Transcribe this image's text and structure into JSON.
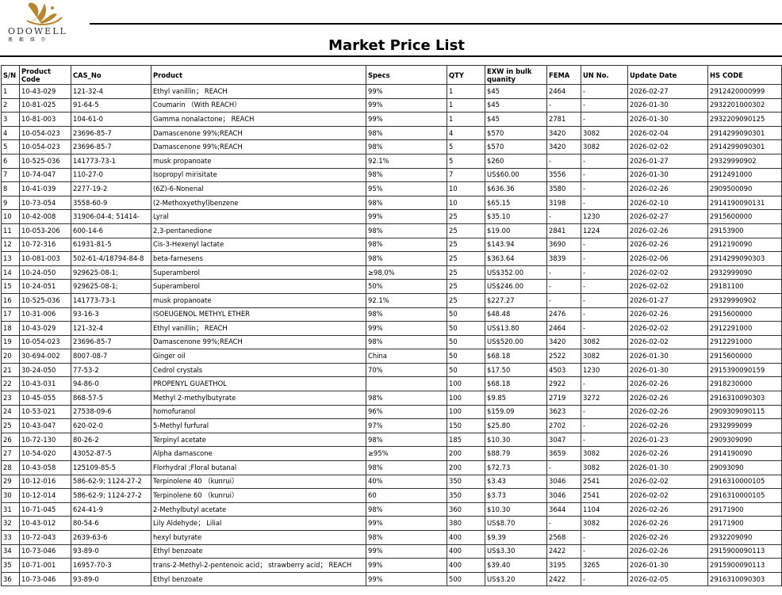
{
  "brand": {
    "name": "ODOWELL",
    "subtitle": "奥 都 维 尔",
    "logo_color": "#b8862e"
  },
  "title": "Market Price List",
  "columns": [
    "S/N",
    "Product Code",
    "CAS_No",
    "Product",
    "Specs",
    "QTY",
    "EXW in bulk quanity",
    "FEMA",
    "UN No.",
    "Update Date",
    "HS CODE"
  ],
  "rows": [
    [
      "1",
      "10-43-029",
      "121-32-4",
      "Ethyl vanillin； REACH",
      "99%",
      "1",
      "$45",
      "2464",
      "-",
      "2026-02-27",
      "2912420000999"
    ],
    [
      "2",
      "10-81-025",
      "91-64-5",
      "Coumarin （With REACH）",
      "99%",
      "1",
      "$45",
      "-",
      "-",
      "2026-01-30",
      "2932201000302"
    ],
    [
      "3",
      "10-81-003",
      "104-61-0",
      "Gamma nonalactone； REACH",
      "99%",
      "1",
      "$45",
      "2781",
      "-",
      "2026-01-30",
      "2932209090125"
    ],
    [
      "4",
      "10-054-023",
      "23696-85-7",
      "Damascenone 99%;REACH",
      "98%",
      "4",
      "$570",
      "3420",
      "3082",
      "2026-02-04",
      " 2914299090301"
    ],
    [
      "5",
      "10-054-023",
      "23696-85-7",
      "Damascenone 99%;REACH",
      "98%",
      "5",
      "$570",
      "3420",
      "3082",
      "2026-02-02",
      " 2914299090301"
    ],
    [
      "6",
      "10-525-036",
      "141773-73-1",
      "musk propanoate",
      "92.1%",
      "5",
      "$260",
      "-",
      "-",
      "2026-01-27",
      "29329990902"
    ],
    [
      "7",
      "10-74-047",
      "110-27-0",
      "Isopropyl mirisitate",
      "98%",
      "7",
      "US$60.00",
      "3556",
      "-",
      "2026-01-30",
      "2912491000"
    ],
    [
      "8",
      "10-41-039",
      "2277-19-2",
      "(6Z)-6-Nonenal",
      "95%",
      "10",
      "$636.36",
      "3580",
      "-",
      "2026-02-26",
      "2909500090"
    ],
    [
      "9",
      "10-73-054",
      "3558-60-9",
      "(2-Methoxyethyl)benzene",
      "98%",
      "10",
      "$65.15",
      "3198",
      "-",
      "2026-02-10",
      "2914190090131"
    ],
    [
      "10",
      "10-42-008",
      "31906-04-4; 51414-",
      "Lyral",
      "99%",
      "25",
      "$35.10",
      "-",
      "1230",
      "2026-02-27",
      "2915600000"
    ],
    [
      "11",
      "10-053-206",
      "600-14-6",
      "2,3-pentanedione",
      "98%",
      "25",
      "$19.00",
      "2841",
      "1224",
      "2026-02-26",
      "29153900"
    ],
    [
      "12",
      "10-72-316",
      "61931-81-5",
      "Cis-3-Hexenyl lactate",
      "98%",
      "25",
      "$143.94",
      "3690",
      "-",
      "2026-02-26",
      "2912190090"
    ],
    [
      "13",
      "10-081-003",
      "502-61-4/18794-84-8",
      "beta-farnesens",
      "98%",
      "25",
      "$363.64",
      "3839",
      "-",
      "2026-02-06",
      "2914299090303"
    ],
    [
      "14",
      "10-24-050",
      "929625-08-1;",
      "Superamberol",
      "≥98.0%",
      "25",
      "US$352.00",
      "-",
      "-",
      "2026-02-02",
      "2932999090"
    ],
    [
      "15",
      "10-24-051",
      "929625-08-1;",
      "Superamberol",
      "50%",
      "25",
      "US$246.00",
      "-",
      "-",
      "2026-02-02",
      "29181100"
    ],
    [
      "16",
      "10-525-036",
      "141773-73-1",
      "musk propanoate",
      "92.1%",
      "25",
      "$227.27",
      "-",
      "-",
      "2026-01-27",
      "29329990902"
    ],
    [
      "17",
      "10-31-006",
      "93-16-3",
      "ISOEUGENOL  METHYL  ETHER",
      "98%",
      "50",
      "$48.48",
      "2476",
      "-",
      "2026-02-26",
      "2915600000"
    ],
    [
      "18",
      "10-43-029",
      "121-32-4",
      "Ethyl vanillin； REACH",
      "99%",
      "50",
      "US$13.80",
      "2464",
      "-",
      "2026-02-02",
      "2912291000"
    ],
    [
      "19",
      "10-054-023",
      "23696-85-7",
      "Damascenone 99%;REACH",
      "98%",
      "50",
      "US$520.00",
      "3420",
      "3082",
      "2026-02-02",
      "2912291000"
    ],
    [
      "20",
      "30-694-002",
      "8007-08-7",
      "Ginger oil",
      "China",
      "50",
      "$68.18",
      "2522",
      "3082",
      "2026-01-30",
      "2915600000"
    ],
    [
      "21",
      "30-24-050",
      "77-53-2",
      "Cedrol crystals",
      "70%",
      "50",
      "$17.50",
      "4503",
      "1230",
      "2026-01-30",
      "2915390090159"
    ],
    [
      "22",
      "10-43-031",
      "94-86-0",
      "PROPENYL  GUAETHOL",
      "",
      "100",
      "$68.18",
      "2922",
      "-",
      "2026-02-26",
      "2918230000"
    ],
    [
      "23",
      "10-45-055",
      "868-57-5",
      "Methyl 2-methylbutyrate",
      "98%",
      "100",
      "$9.85",
      "2719",
      "3272",
      "2026-02-26",
      "2916310090303"
    ],
    [
      "24",
      "10-53-021",
      "27538-09-6",
      "homofuranol",
      "96%",
      "100",
      "$159.09",
      "3623",
      "-",
      "2026-02-26",
      "2909309090115"
    ],
    [
      "25",
      "10-43-047",
      "620-02-0",
      "5-Methyl furfural",
      "97%",
      "150",
      "$25.80",
      "2702",
      "-",
      "2026-02-26",
      "2932999099"
    ],
    [
      "26",
      "10-72-130",
      "80-26-2",
      "Terpinyl acetate",
      "98%",
      "185",
      "$10.30",
      "3047",
      "-",
      "2026-01-23",
      "2909309090"
    ],
    [
      "27",
      "10-54-020",
      "43052-87-5",
      "Alpha damascone",
      "≥95%",
      "200",
      "$88.79",
      "3659",
      "3082",
      "2026-02-26",
      "2914190090"
    ],
    [
      "28",
      "10-43-058",
      "125109-85-5",
      "Florhydral ;Floral butanal",
      "98%",
      "200",
      "$72.73",
      "-",
      "3082",
      "2026-01-30",
      "29093090"
    ],
    [
      "29",
      "10-12-016",
      "586-62-9; 1124-27-2",
      "Terpinolene  40  （kunrui）",
      "40%",
      "350",
      "$3.43",
      "3046",
      "2541",
      "2026-02-02",
      "2916310000105"
    ],
    [
      "30",
      "10-12-014",
      "586-62-9; 1124-27-2",
      "Terpinolene 60  （kunrui）",
      "60",
      "350",
      "$3.73",
      "3046",
      "2541",
      "2026-02-02",
      "2916310000105"
    ],
    [
      "31",
      "10-71-045",
      "624-41-9",
      "2-Methylbutyl acetate",
      "98%",
      "360",
      "$10.30",
      "3644",
      "1104",
      "2026-02-26",
      "29171900"
    ],
    [
      "32",
      "10-43-012",
      "80-54-6",
      "Lily Aldehyde； Lilial",
      "99%",
      "380",
      "US$8.70",
      "-",
      "3082",
      "2026-02-26",
      "29171900"
    ],
    [
      "33",
      "10-72-043",
      "2639-63-6",
      "hexyl butyrate",
      "98%",
      "400",
      "$9.39",
      "2568",
      "-",
      "2026-02-26",
      "2932209090"
    ],
    [
      "34",
      "10-73-046",
      "93-89-0",
      "Ethyl benzoate",
      "99%",
      "400",
      "US$3.30",
      "2422",
      "-",
      "2026-02-26",
      "2915900090113"
    ],
    [
      "35",
      "10-71-001",
      "16957-70-3",
      "trans-2-Methyl-2-pentenoic acid； strawberry acid； REACH",
      "99%",
      "400",
      "$39.40",
      "3195",
      "3265",
      "2026-01-30",
      "2915900090113"
    ],
    [
      "36",
      "10-73-046",
      "93-89-0",
      "Ethyl benzoate",
      "99%",
      "500",
      "US$3.20",
      "2422",
      "-",
      "2026-02-05",
      "2916310090303"
    ]
  ]
}
